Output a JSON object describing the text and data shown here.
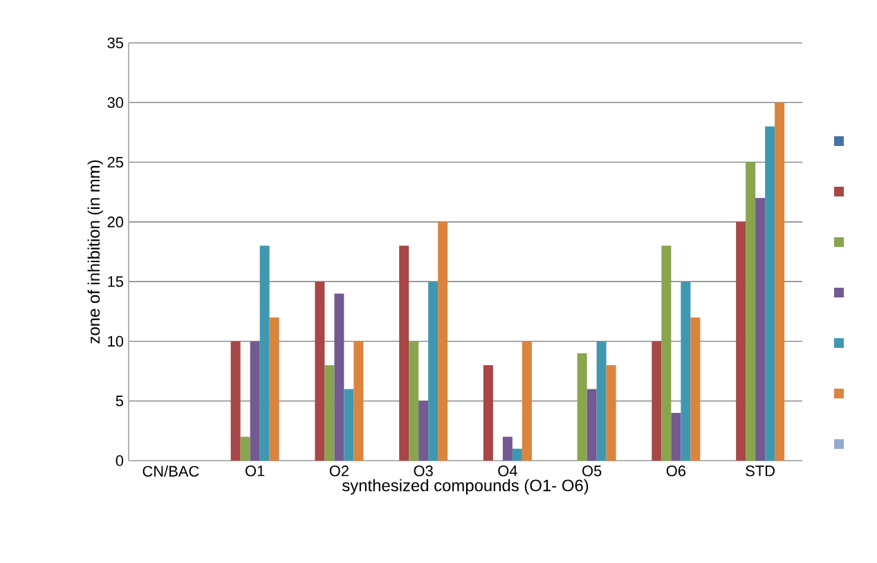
{
  "chart_data": {
    "type": "bar",
    "xlabel": "synthesized compounds (O1- O6)",
    "ylabel": "zone of inhibition (in  mm)",
    "categories": [
      "CN/BAC",
      "O1",
      "O2",
      "O3",
      "O4",
      "O5",
      "O6",
      "STD"
    ],
    "series": [
      {
        "color": "#4472a8",
        "values": [
          null,
          null,
          null,
          null,
          null,
          null,
          null,
          null
        ]
      },
      {
        "color": "#a94646",
        "values": [
          null,
          10,
          15,
          18,
          8,
          null,
          10,
          20
        ]
      },
      {
        "color": "#89a54e",
        "values": [
          null,
          2,
          8,
          10,
          null,
          9,
          18,
          25
        ]
      },
      {
        "color": "#735a92",
        "values": [
          null,
          10,
          14,
          5,
          2,
          6,
          4,
          22
        ]
      },
      {
        "color": "#3f98b0",
        "values": [
          null,
          18,
          6,
          15,
          1,
          10,
          15,
          28
        ]
      },
      {
        "color": "#db843d",
        "values": [
          null,
          12,
          10,
          20,
          10,
          8,
          12,
          30
        ]
      },
      {
        "color": "#93a9cf",
        "values": [
          null,
          null,
          null,
          null,
          null,
          null,
          null,
          null
        ]
      }
    ],
    "ylim": [
      0,
      35
    ],
    "yticks": [
      0,
      5,
      10,
      15,
      20,
      25,
      30,
      35
    ],
    "grid": "y"
  }
}
